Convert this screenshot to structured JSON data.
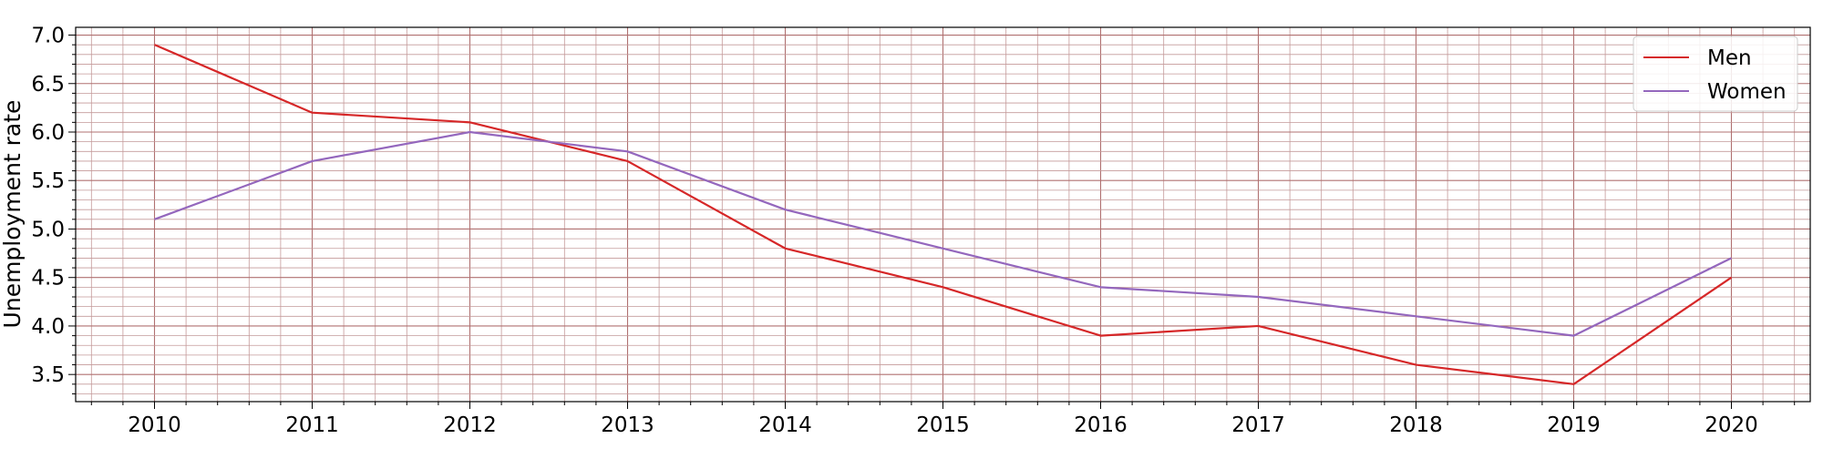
{
  "chart_data": {
    "type": "line",
    "title": "",
    "xlabel": "",
    "ylabel": "Unemployment rate",
    "x": [
      "2010",
      "2011",
      "2012",
      "2013",
      "2014",
      "2015",
      "2016",
      "2017",
      "2018",
      "2019",
      "2020"
    ],
    "xlim": [
      2009.5,
      2020.5
    ],
    "ylim": [
      3.22,
      7.08
    ],
    "yticks": [
      "3.5",
      "4.0",
      "4.5",
      "5.0",
      "5.5",
      "6.0",
      "6.5",
      "7.0"
    ],
    "grid": true,
    "legend_position": "top-right",
    "series": [
      {
        "name": "Men",
        "color": "#d62728",
        "values": [
          6.9,
          6.2,
          6.1,
          5.7,
          4.8,
          4.4,
          3.9,
          4.0,
          3.6,
          3.4,
          4.5
        ]
      },
      {
        "name": "Women",
        "color": "#9467bd",
        "values": [
          5.1,
          5.7,
          6.0,
          5.8,
          5.2,
          4.8,
          4.4,
          4.3,
          4.1,
          3.9,
          4.7
        ]
      }
    ],
    "colors": {
      "major_grid": "#b07070",
      "minor_grid": "#c49a9a",
      "axis": "#000000",
      "legend_border": "#cccccc"
    }
  }
}
